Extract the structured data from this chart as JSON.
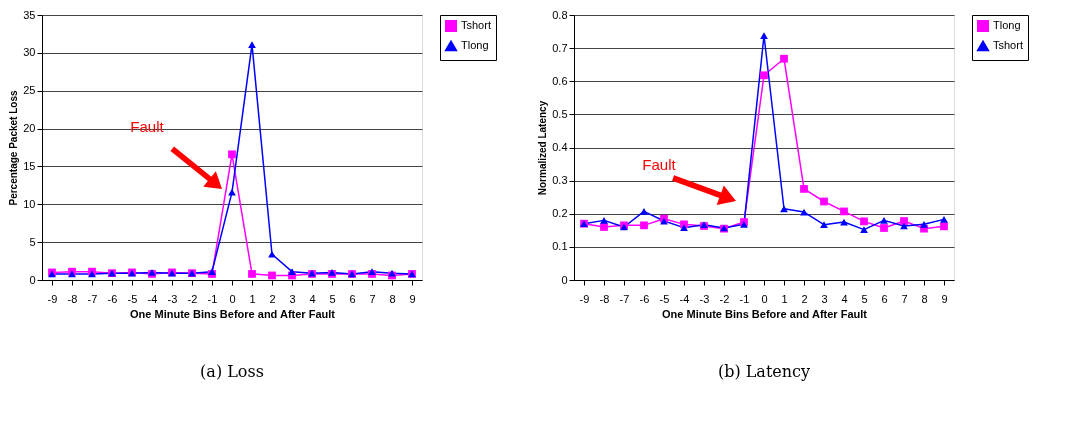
{
  "chart_data": [
    {
      "type": "line",
      "xlabel": "One Minute Bins Before and After Fault",
      "ylabel": "Percentage Packet Loss",
      "categories": [
        "-9",
        "-8",
        "-7",
        "-6",
        "-5",
        "-4",
        "-3",
        "-2",
        "-1",
        "0",
        "1",
        "2",
        "3",
        "4",
        "5",
        "6",
        "7",
        "8",
        "9"
      ],
      "series": [
        {
          "name": "Tshort",
          "color": "#ff00ff",
          "marker": "square",
          "values": [
            1.0,
            1.1,
            1.1,
            0.9,
            1.0,
            0.8,
            1.0,
            0.9,
            0.8,
            16.6,
            0.8,
            0.6,
            0.6,
            0.8,
            0.8,
            0.8,
            0.8,
            0.6,
            0.8
          ]
        },
        {
          "name": "Tlong",
          "color": "#0000ff",
          "marker": "triangle",
          "values": [
            0.8,
            0.8,
            0.8,
            0.9,
            0.9,
            1.0,
            0.9,
            0.9,
            1.1,
            11.6,
            31.1,
            3.4,
            1.1,
            0.9,
            1.0,
            0.8,
            1.1,
            0.9,
            0.8
          ]
        }
      ],
      "ylim": [
        0,
        35
      ],
      "yticks": [
        0,
        5,
        10,
        15,
        20,
        25,
        30,
        35
      ],
      "grid": "y",
      "legend": "right",
      "annotations": [
        "Fault",
        "(a) Loss"
      ]
    },
    {
      "type": "line",
      "xlabel": "One Minute Bins Before and After Fault",
      "ylabel": "Normalized Latency",
      "categories": [
        "-9",
        "-8",
        "-7",
        "-6",
        "-5",
        "-4",
        "-3",
        "-2",
        "-1",
        "0",
        "1",
        "2",
        "3",
        "4",
        "5",
        "6",
        "7",
        "8",
        "9"
      ],
      "series": [
        {
          "name": "Tlong",
          "color": "#ff00ff",
          "marker": "square",
          "values": [
            0.17,
            0.16,
            0.165,
            0.165,
            0.185,
            0.168,
            0.163,
            0.155,
            0.175,
            0.618,
            0.668,
            0.275,
            0.237,
            0.207,
            0.177,
            0.157,
            0.178,
            0.155,
            0.162
          ]
        },
        {
          "name": "Tshort",
          "color": "#0000ff",
          "marker": "triangle",
          "values": [
            0.17,
            0.18,
            0.16,
            0.207,
            0.178,
            0.158,
            0.167,
            0.157,
            0.168,
            0.738,
            0.215,
            0.205,
            0.167,
            0.175,
            0.152,
            0.18,
            0.163,
            0.168,
            0.183
          ]
        }
      ],
      "ylim": [
        0,
        0.8
      ],
      "yticks": [
        0,
        0.1,
        0.2,
        0.3,
        0.4,
        0.5,
        0.6,
        0.7,
        0.8
      ],
      "grid": "y",
      "legend": "right",
      "annotations": [
        "Fault",
        "(b) Latency"
      ]
    }
  ]
}
